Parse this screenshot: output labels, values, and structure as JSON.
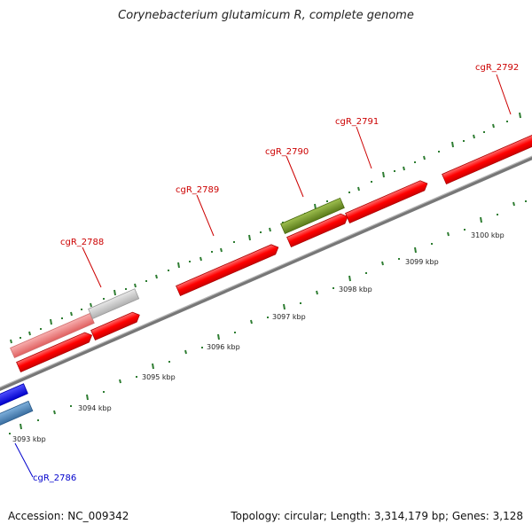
{
  "title": "Corynebacterium glutamicum R, complete genome",
  "accession": "Accession: NC_009342",
  "stats": "Topology: circular; Length: 3,314,179 bp; Genes: 3,128",
  "colors": {
    "backbone": "#8a8a8a",
    "forward_gene": "#ff0000",
    "forward_gene_light": "#f08080",
    "gray_gene": "#c8c8c8",
    "green_gene": "#6b8e23",
    "blue_gene": "#0000ff",
    "steel_gene": "#4682b4",
    "tick": "#2e7d32",
    "label_red": "#cc0000",
    "label_blue": "#0000cc"
  },
  "genes": [
    {
      "name": "cgR_2792",
      "color": "#cc0000"
    },
    {
      "name": "cgR_2791",
      "color": "#cc0000"
    },
    {
      "name": "cgR_2790",
      "color": "#cc0000"
    },
    {
      "name": "cgR_2789",
      "color": "#cc0000"
    },
    {
      "name": "cgR_2788",
      "color": "#cc0000"
    },
    {
      "name": "cgR_2786",
      "color": "#0000cc"
    }
  ],
  "scale_labels": [
    "3093 kbp",
    "3094 kbp",
    "3095 kbp",
    "3096 kbp",
    "3097 kbp",
    "3098 kbp",
    "3099 kbp",
    "3100 kbp"
  ]
}
